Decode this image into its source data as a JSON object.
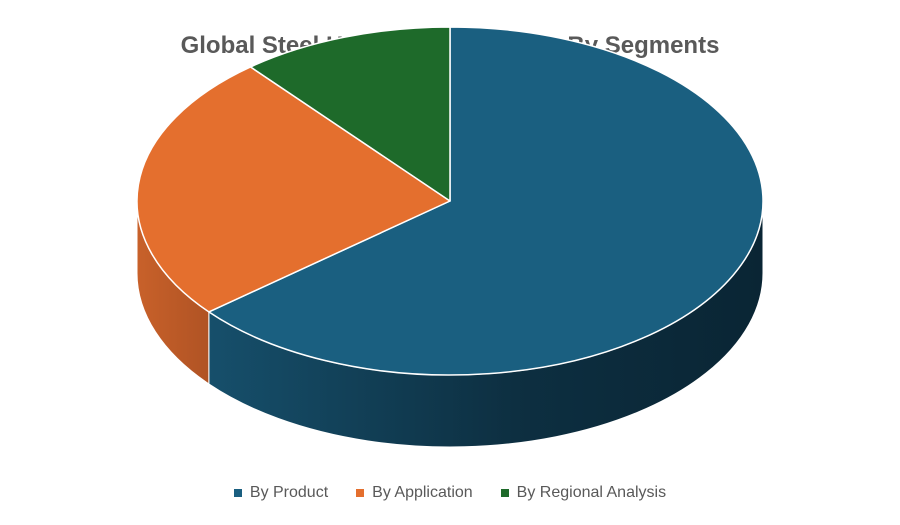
{
  "chart_data": {
    "type": "pie",
    "style": "3d",
    "title": "Global Steel Hand Trucks Market, By Segments",
    "series": [
      {
        "name": "By Product",
        "value": 64,
        "color": "#1a5f80"
      },
      {
        "name": "By Application",
        "value": 25,
        "color": "#e46f2e"
      },
      {
        "name": "By Regional Analysis",
        "value": 11,
        "color": "#1e6a2a"
      }
    ],
    "legend_position": "bottom"
  }
}
